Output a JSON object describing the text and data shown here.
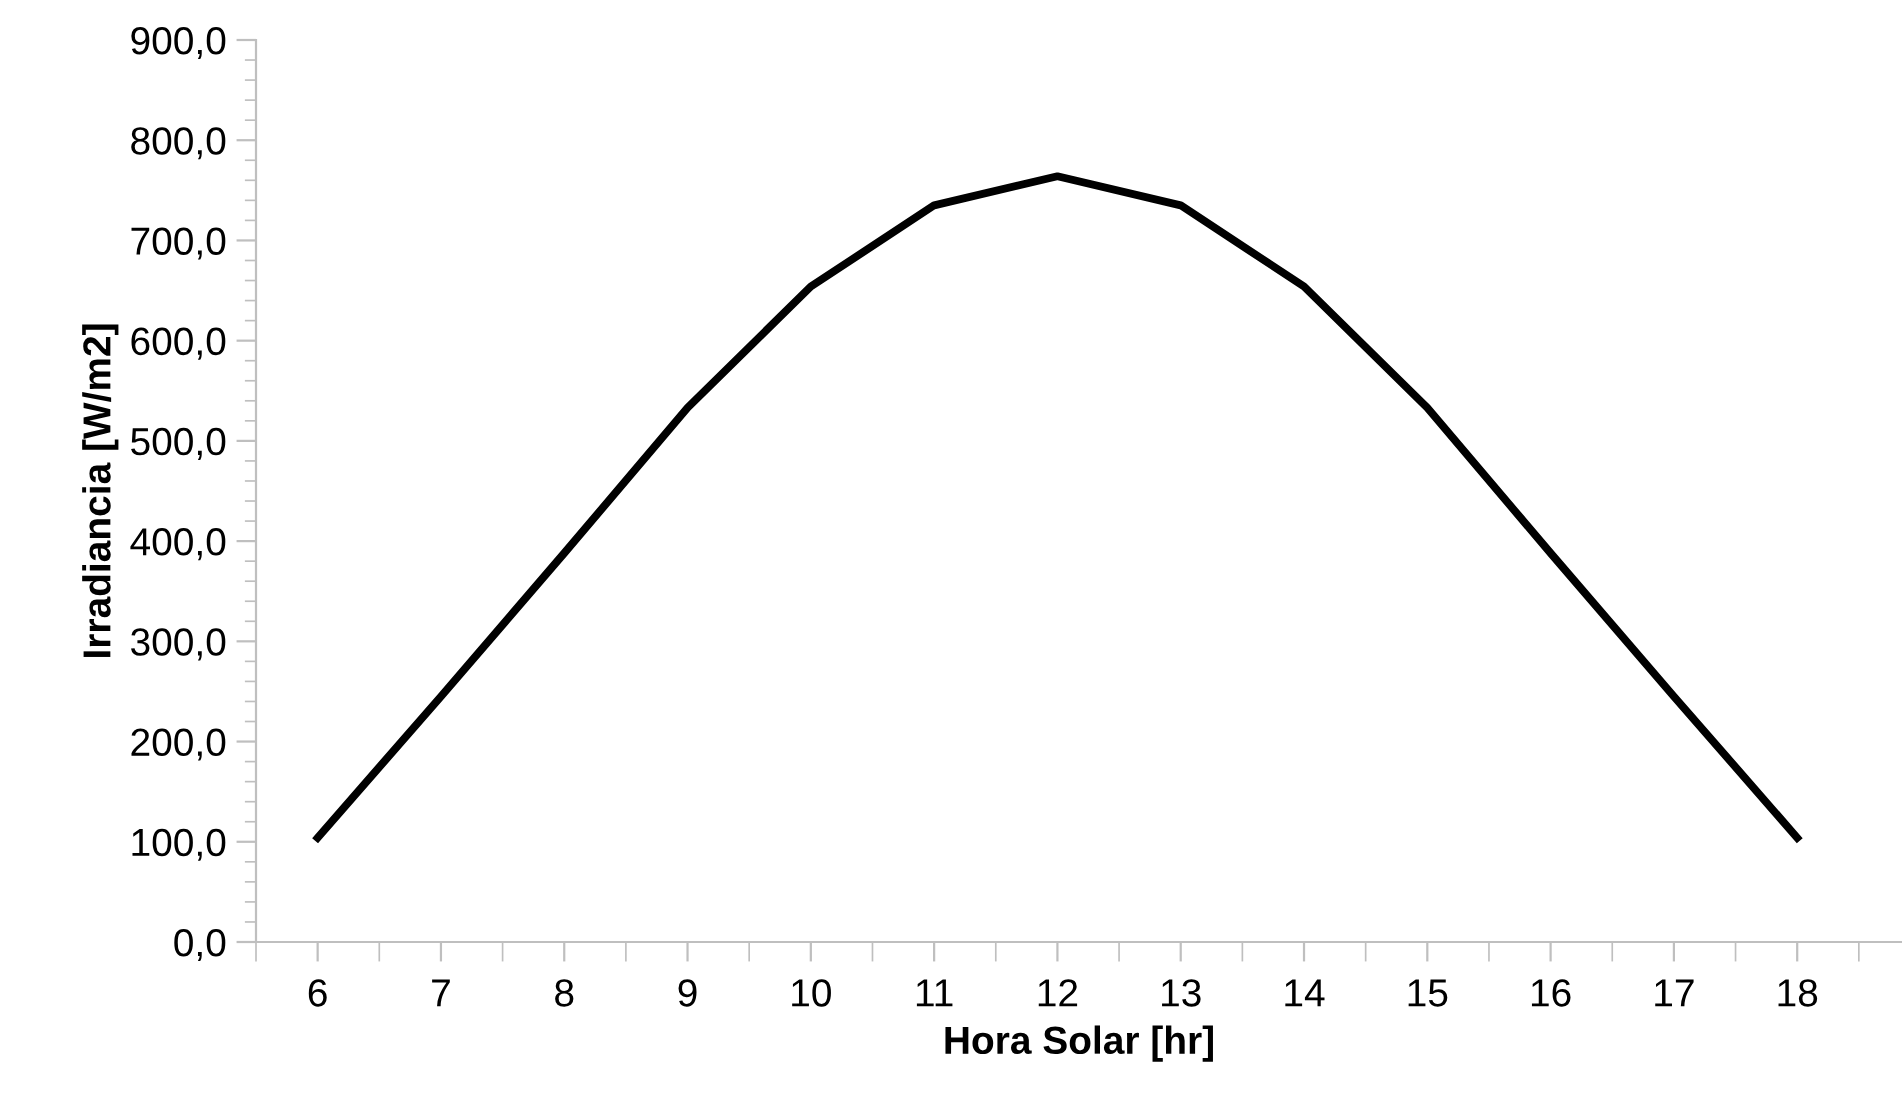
{
  "chart_data": {
    "type": "line",
    "xlabel": "Hora Solar [hr]",
    "ylabel": "Irradiancia [W/m2]",
    "categories": [
      "6",
      "7",
      "8",
      "9",
      "10",
      "11",
      "12",
      "13",
      "14",
      "15",
      "16",
      "17",
      "18"
    ],
    "series": [
      {
        "color": "#000000",
        "values": [
          104,
          245,
          388,
          533,
          654,
          735,
          764,
          735,
          654,
          533,
          388,
          245,
          104
        ]
      }
    ],
    "ylim": [
      0,
      900
    ],
    "yticks": [
      {
        "value": 0,
        "label": "0,0"
      },
      {
        "value": 100,
        "label": "100,0"
      },
      {
        "value": 200,
        "label": "200,0"
      },
      {
        "value": 300,
        "label": "300,0"
      },
      {
        "value": 400,
        "label": "400,0"
      },
      {
        "value": 500,
        "label": "500,0"
      },
      {
        "value": 600,
        "label": "600,0"
      },
      {
        "value": 700,
        "label": "700,0"
      },
      {
        "value": 800,
        "label": "800,0"
      },
      {
        "value": 900,
        "label": "900,0"
      }
    ],
    "grid": false,
    "legend": false,
    "marker": "none",
    "line_style": "solid"
  }
}
